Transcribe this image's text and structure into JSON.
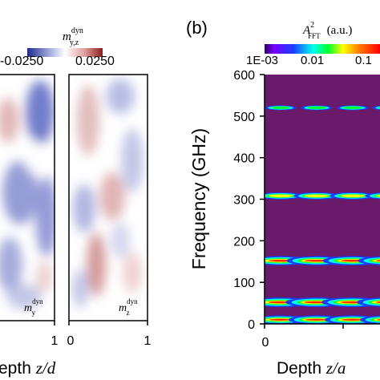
{
  "chart_data": [
    {
      "type": "heatmap",
      "panel": "a",
      "colorbar": {
        "label_main": "m",
        "label_sup": "dyn",
        "label_sub": "y,z",
        "min_label": "-0.0250",
        "max_label": "0.0250",
        "colors": [
          "#1e2a8c",
          "#8f97d3",
          "#ffffff",
          "#e2a3a3",
          "#8c1c1c"
        ]
      },
      "xlabel_main": "epth ",
      "xlabel_var": "z/d",
      "subplots": [
        {
          "inset_main": "m",
          "inset_sup": "dyn",
          "inset_sub": "y",
          "x_ticks": [
            "1"
          ]
        },
        {
          "inset_main": "m",
          "inset_sup": "dyn",
          "inset_sub": "z",
          "x_ticks": [
            "0",
            "1"
          ]
        }
      ]
    },
    {
      "type": "heatmap",
      "panel": "b",
      "panel_label": "(b)",
      "colorbar": {
        "label_main": "A",
        "label_sup": "2",
        "label_sub": "FFT",
        "label_unit": "(a.u.)",
        "tick_labels": [
          "1E-03",
          "0.01",
          "0.1"
        ],
        "scale": "log"
      },
      "ylabel": "Frequency (GHz)",
      "xlabel_main": "Depth ",
      "xlabel_var": "z/a",
      "x_ticks": [
        "0"
      ],
      "ylim": [
        0,
        600
      ],
      "y_ticks": [
        0,
        100,
        200,
        300,
        400,
        500,
        600
      ],
      "background_color": "#6a1a6a",
      "bands": [
        {
          "frequency": 520,
          "intensity": 0.25
        },
        {
          "frequency": 308,
          "intensity": 0.6
        },
        {
          "frequency": 152,
          "intensity": 0.95
        },
        {
          "frequency": 52,
          "intensity": 1.0
        },
        {
          "frequency": 10,
          "intensity": 0.85
        }
      ]
    }
  ]
}
